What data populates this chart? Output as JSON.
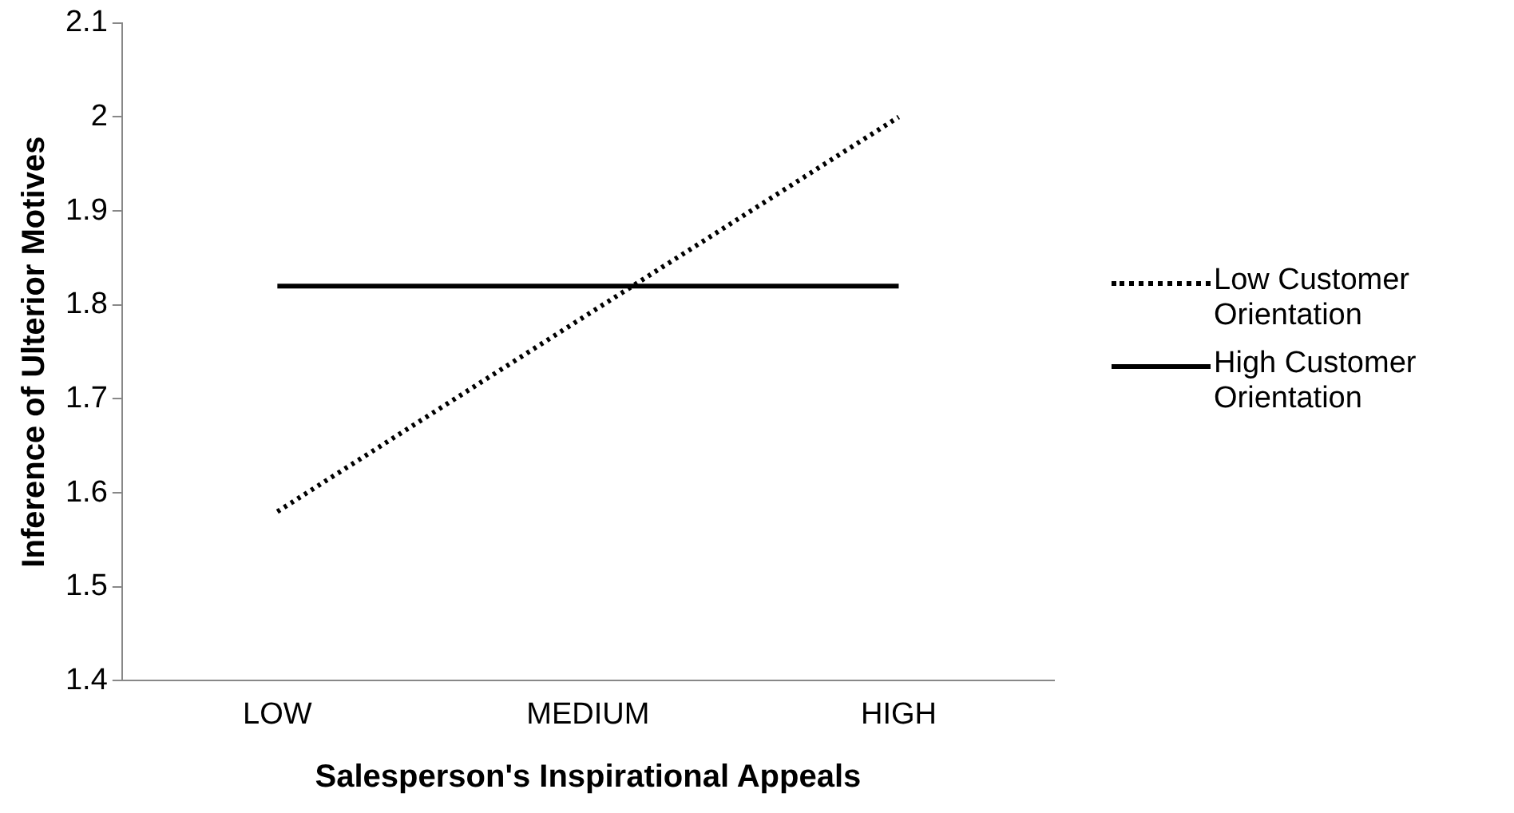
{
  "chart_data": {
    "type": "line",
    "xlabel": "Salesperson's Inspirational Appeals",
    "ylabel": "Inference of Ulterior Motives",
    "categories": [
      "LOW",
      "MEDIUM",
      "HIGH"
    ],
    "series": [
      {
        "name": "Low Customer Orientation",
        "color": "#000000",
        "line_style": "dotted",
        "values": [
          1.58,
          1.79,
          2.0
        ]
      },
      {
        "name": "High Customer Orientation",
        "color": "#000000",
        "line_style": "solid",
        "values": [
          1.82,
          1.82,
          1.82
        ]
      }
    ],
    "ylim": [
      1.4,
      2.1
    ],
    "yticks": [
      1.4,
      1.5,
      1.6,
      1.7,
      1.8,
      1.9,
      2,
      2.1
    ],
    "grid": false,
    "legend": "right",
    "marker": "none"
  }
}
